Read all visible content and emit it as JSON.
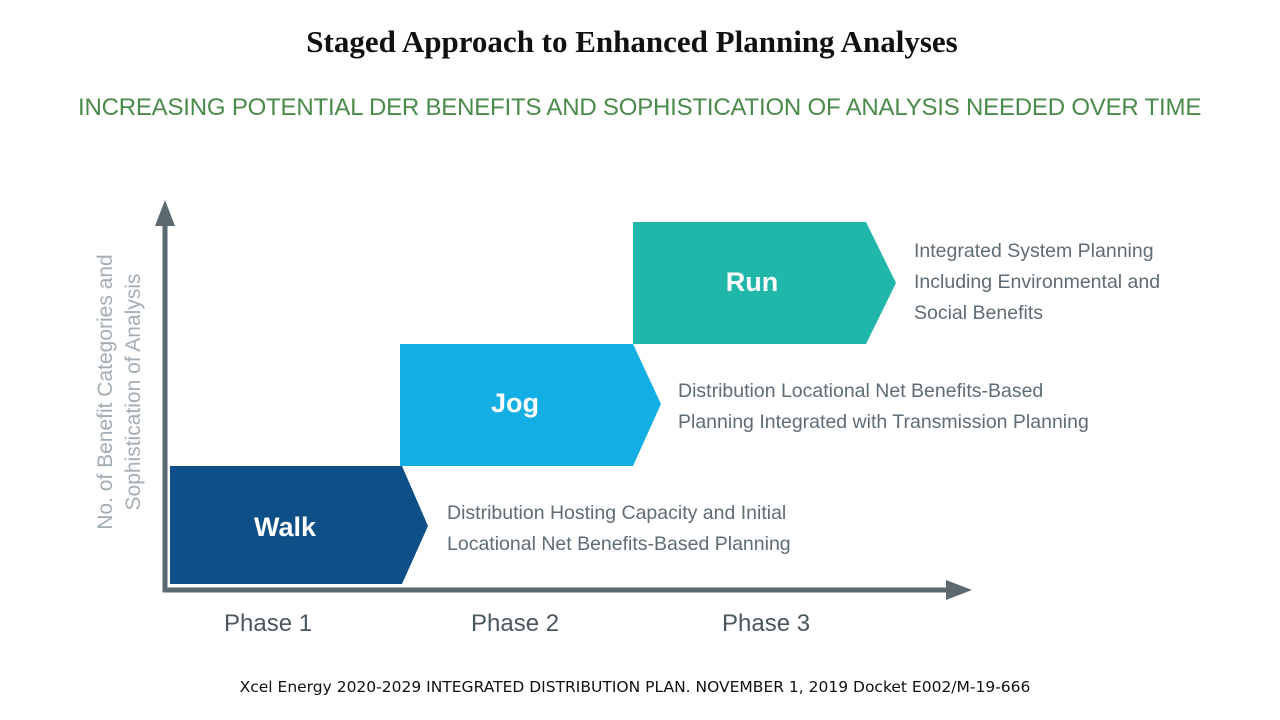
{
  "title": "Staged Approach to Enhanced Planning Analyses",
  "subtitle": "INCREASING POTENTIAL DER BENEFITS AND SOPHISTICATION OF ANALYSIS NEEDED OVER TIME",
  "y_axis_label": {
    "line1": "No. of Benefit Categories and",
    "line2": "Sophistication of Analysis"
  },
  "stages": [
    {
      "label": "Walk",
      "color": "#0d4f86",
      "phase": "Phase 1",
      "description": [
        "Distribution Hosting Capacity and Initial",
        "Locational Net Benefits-Based Planning"
      ]
    },
    {
      "label": "Jog",
      "color": "#13afe4",
      "phase": "Phase 2",
      "description": [
        "Distribution Locational Net Benefits-Based",
        "Planning Integrated with Transmission Planning"
      ]
    },
    {
      "label": "Run",
      "color": "#20b6aa",
      "phase": "Phase 3",
      "description": [
        "Integrated System Planning",
        "Including Environmental and",
        "Social Benefits"
      ]
    }
  ],
  "colors": {
    "axis": "#5c6970",
    "subtitle": "#4a8a4a"
  },
  "footer": "Xcel Energy 2020-2029 INTEGRATED  DISTRIBUTION  PLAN. NOVEMBER  1, 2019 Docket  E002/M-19-666"
}
